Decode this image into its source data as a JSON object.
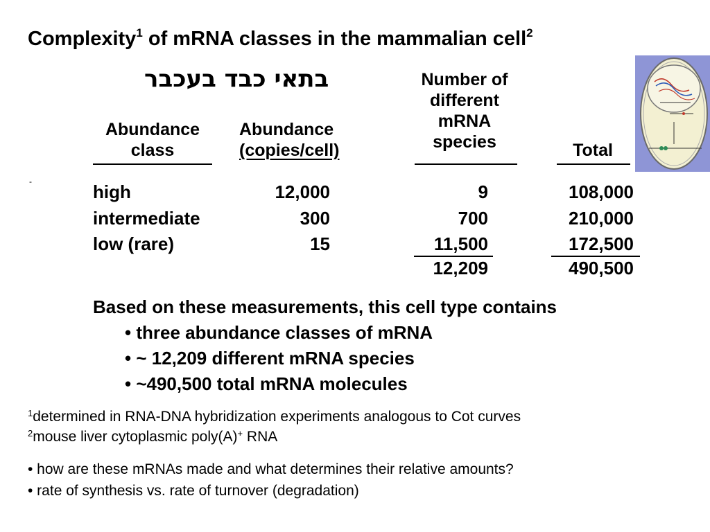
{
  "title": {
    "text": "Complexity",
    "sup1": "1",
    "text2": " of mRNA classes in the mammalian cell",
    "sup2": "2"
  },
  "hebrew_heading": "בתאי כבד בעכבר",
  "table": {
    "headers": {
      "col1_line1": "Abundance",
      "col1_line2": "class",
      "col2_line1": "Abundance",
      "col2_line2": "(copies/cell)",
      "col3_line1": "Number of",
      "col3_line2": "different",
      "col3_line3": "mRNA",
      "col3_line4": "species",
      "col4": "Total"
    },
    "rows": [
      {
        "class": "high",
        "copies": "12,000",
        "species": "9",
        "total": "108,000"
      },
      {
        "class": "intermediate",
        "copies": "300",
        "species": "700",
        "total": "210,000"
      },
      {
        "class": "low (rare)",
        "copies": "15",
        "species": "11,500",
        "total": "172,500"
      }
    ],
    "sum_species": "12,209",
    "sum_total": "490,500"
  },
  "stray_dash": "-",
  "conclusion": {
    "lead": "Based on these measurements, this cell type contains",
    "bullets": [
      "• three abundance classes of mRNA",
      "• ~ 12,209 different mRNA species",
      "• ~490,500 total mRNA molecules"
    ]
  },
  "footnotes": {
    "fn1_mark": "1",
    "fn1_text": "determined in RNA-DNA hybridization experiments analogous to Cot curves",
    "fn2_mark": "2",
    "fn2_text_a": "mouse liver cytoplasmic poly(A)",
    "fn2_sup": "+",
    "fn2_text_b": " RNA"
  },
  "questions": [
    "• how are these mRNAs made and what determines their relative amounts?",
    "• rate of synthesis vs. rate of turnover (degradation)"
  ],
  "colors": {
    "image_bg": "#8e95d6",
    "cell_fill": "#f3f0d2"
  }
}
